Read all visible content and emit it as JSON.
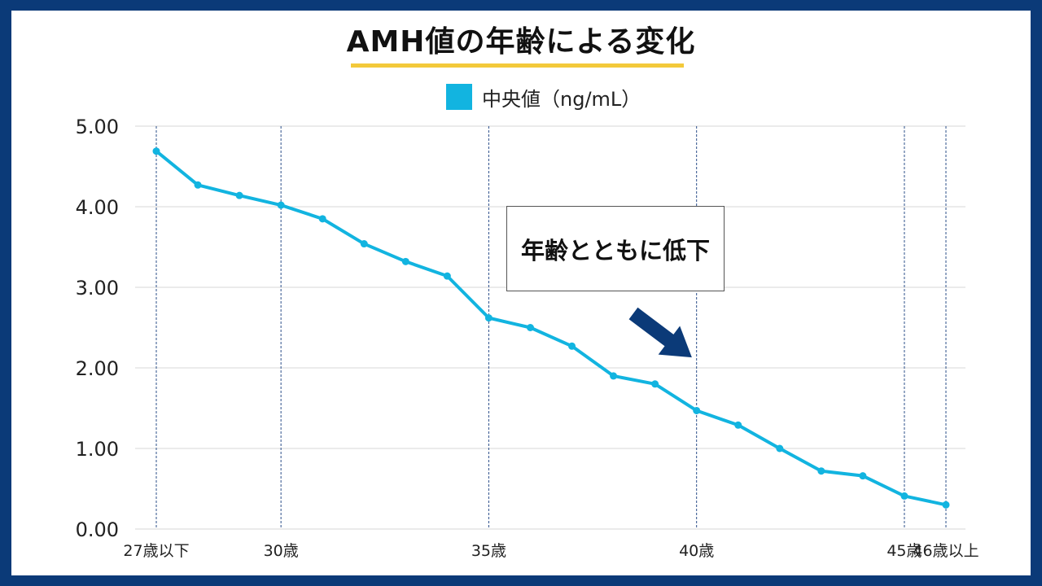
{
  "chart_data": {
    "type": "line",
    "title": "AMH値の年齢による変化",
    "x": [
      27,
      28,
      29,
      30,
      31,
      32,
      33,
      34,
      35,
      36,
      37,
      38,
      39,
      40,
      41,
      42,
      43,
      44,
      45,
      46
    ],
    "x_tick_labels": [
      {
        "x": 27,
        "label": "27歳以下"
      },
      {
        "x": 30,
        "label": "30歳"
      },
      {
        "x": 35,
        "label": "35歳"
      },
      {
        "x": 40,
        "label": "40歳"
      },
      {
        "x": 45,
        "label": "45歳"
      },
      {
        "x": 46,
        "label": "46歳以上"
      }
    ],
    "series": [
      {
        "name": "中央値（ng/mL）",
        "color": "#12b4e0",
        "values": [
          4.69,
          4.27,
          4.14,
          4.02,
          3.85,
          3.54,
          3.32,
          3.14,
          2.62,
          2.5,
          2.27,
          1.9,
          1.8,
          1.47,
          1.29,
          1.0,
          0.72,
          0.66,
          0.41,
          0.3
        ]
      }
    ],
    "y_ticks": [
      "0.00",
      "1.00",
      "2.00",
      "3.00",
      "4.00",
      "5.00"
    ],
    "ylim": [
      0,
      5
    ],
    "xlim": [
      27,
      46
    ],
    "grid": true,
    "legend_position": "top-center",
    "annotation": "年齢とともに低下"
  },
  "colors": {
    "border": "#0b3a78",
    "title_underline": "#f3c93a",
    "line": "#12b4e0",
    "arrow": "#0b3a78",
    "grid": "#d7d7d7",
    "vertical_guides": "#2b4f8a"
  },
  "annotation_icon": "arrow-down-right-icon"
}
